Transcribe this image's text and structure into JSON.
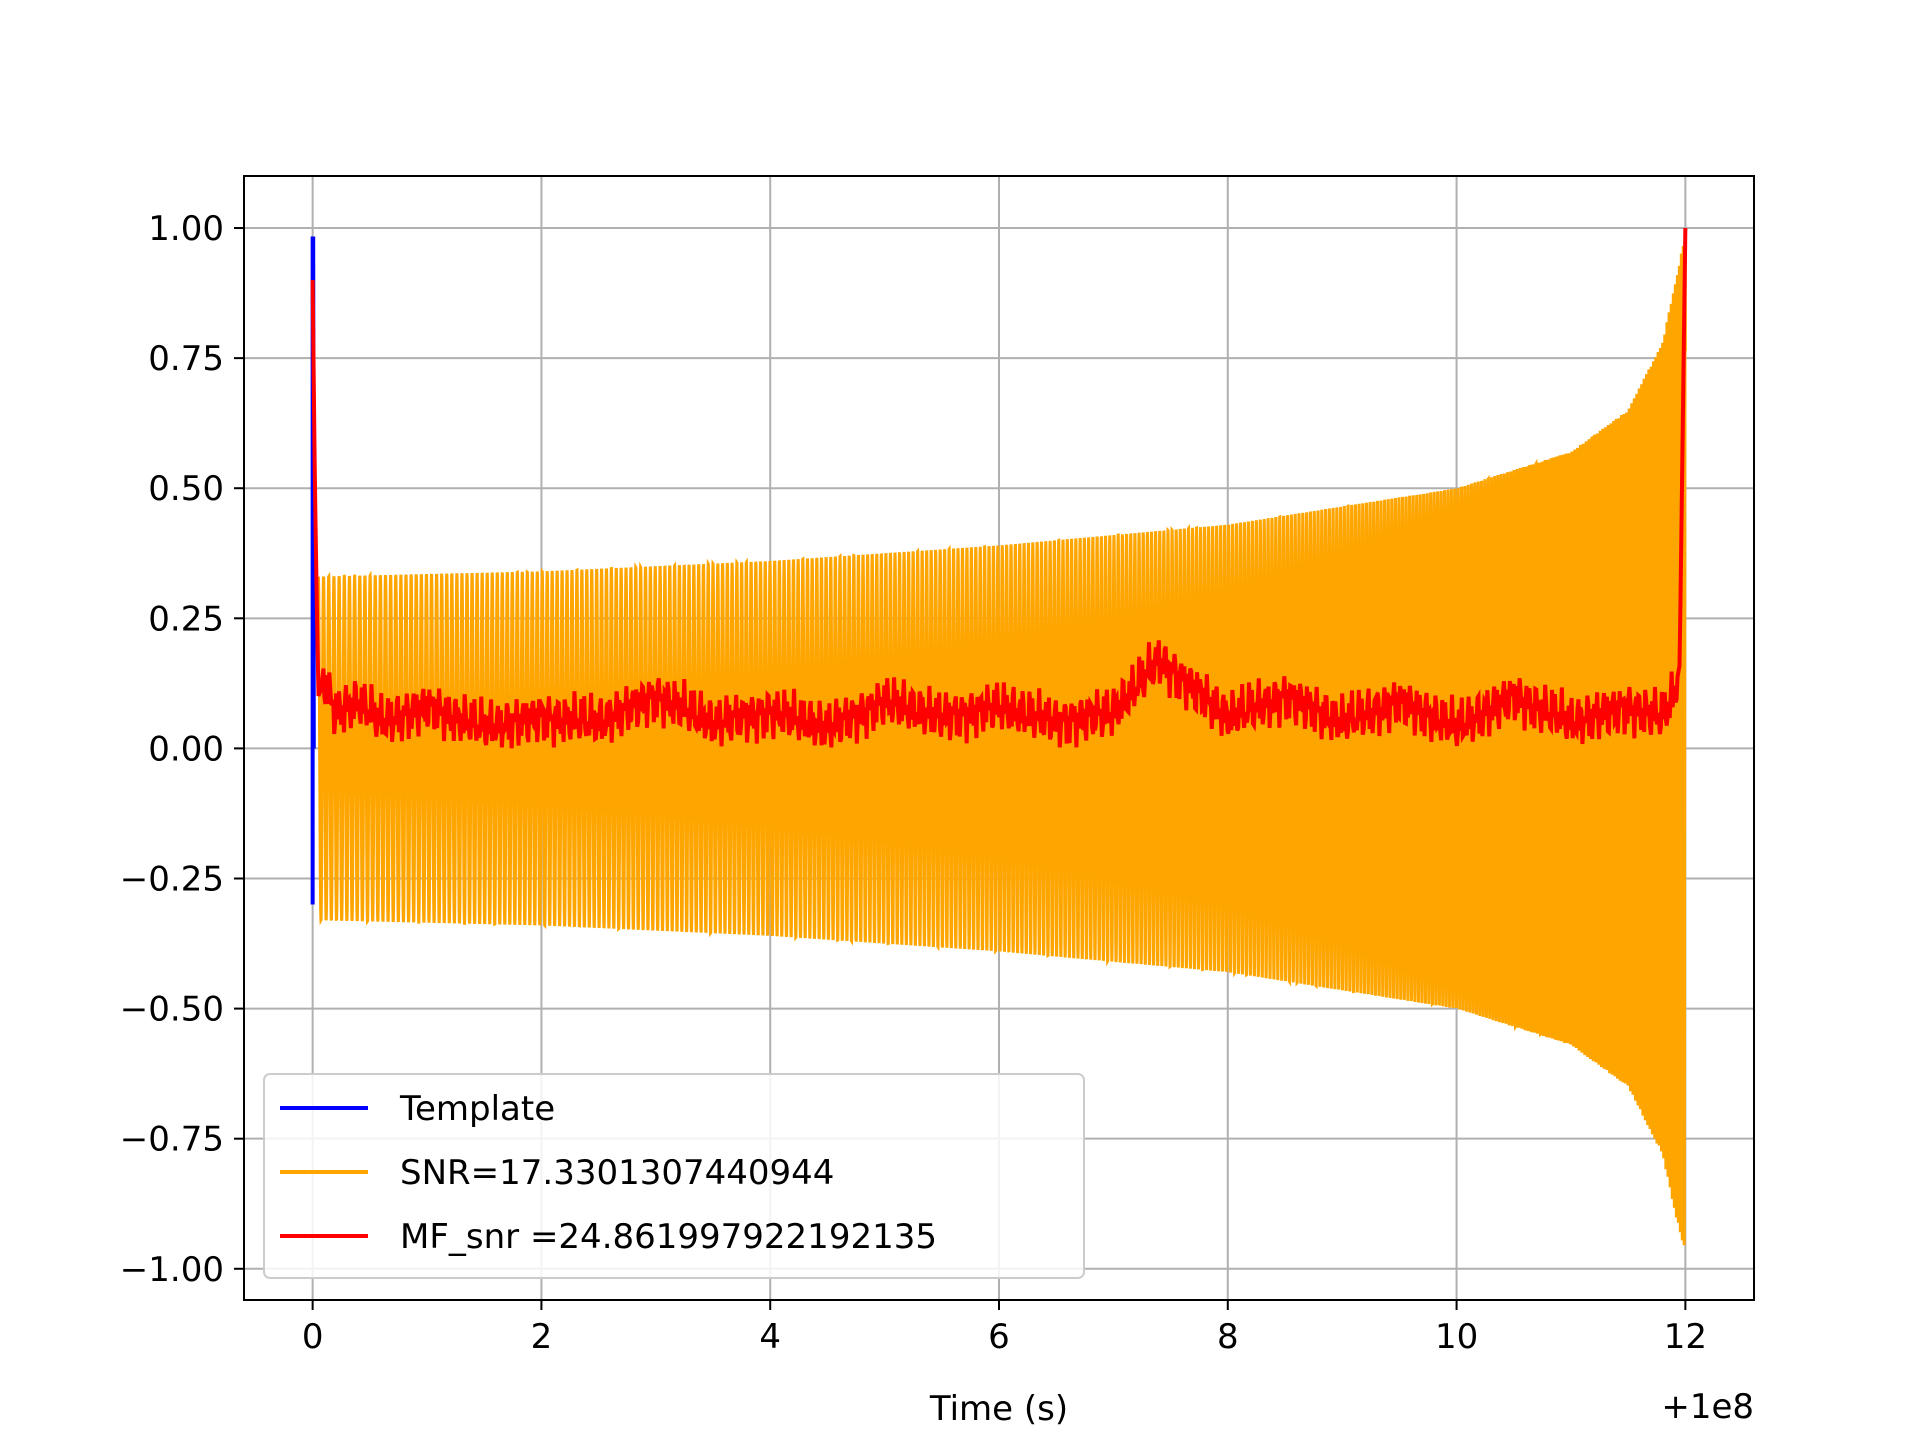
{
  "chart_data": {
    "type": "line",
    "title": "",
    "xlabel": "Time (s)",
    "ylabel": "",
    "x_offset_label": "+1e8",
    "xlim": [
      -0.6,
      12.6
    ],
    "ylim": [
      -1.06,
      1.1
    ],
    "xticks": [
      0,
      2,
      4,
      6,
      8,
      10,
      12
    ],
    "xtick_labels": [
      "0",
      "2",
      "4",
      "6",
      "8",
      "10",
      "12"
    ],
    "yticks": [
      1.0,
      0.75,
      0.5,
      0.25,
      0.0,
      -0.25,
      -0.5,
      -0.75,
      -1.0
    ],
    "ytick_labels": [
      "1.00",
      "0.75",
      "0.50",
      "0.25",
      "0.00",
      "−0.25",
      "−0.50",
      "−0.75",
      "−1.00"
    ],
    "grid": true,
    "legend_position": "lower-left",
    "series": [
      {
        "name": "Template",
        "color": "#0000ff",
        "description_values": {
          "x": [
            0.0,
            0.0,
            0.005,
            0.01
          ],
          "y": [
            -0.3,
            0.98,
            0.98,
            0.0
          ]
        }
      },
      {
        "name": "SNR=17.3301307440944",
        "color": "#ffa500",
        "envelope": {
          "x": [
            0.05,
            2,
            4,
            6,
            8,
            10,
            11,
            11.5,
            11.8,
            11.95,
            12.0
          ],
          "upper": [
            0.33,
            0.34,
            0.36,
            0.39,
            0.43,
            0.5,
            0.57,
            0.65,
            0.78,
            0.93,
            1.0
          ],
          "lower": [
            -0.33,
            -0.34,
            -0.36,
            -0.39,
            -0.43,
            -0.5,
            -0.57,
            -0.65,
            -0.78,
            -0.93,
            -0.97
          ]
        }
      },
      {
        "name": "MF_snr =24.861997922192135",
        "color": "#ff0000",
        "x": [
          0.0,
          0.02,
          0.05,
          0.1,
          0.2,
          0.4,
          0.6,
          1.0,
          1.5,
          2.0,
          2.5,
          3.0,
          3.5,
          4.0,
          4.5,
          5.0,
          5.5,
          6.0,
          6.5,
          7.0,
          7.4,
          8.0,
          8.5,
          9.0,
          9.5,
          10.0,
          10.5,
          11.0,
          11.5,
          11.8,
          11.9,
          11.95,
          12.0
        ],
        "y": [
          0.9,
          0.5,
          0.1,
          0.13,
          0.07,
          0.09,
          0.05,
          0.08,
          0.04,
          0.06,
          0.05,
          0.1,
          0.05,
          0.07,
          0.04,
          0.09,
          0.06,
          0.08,
          0.05,
          0.07,
          0.17,
          0.06,
          0.1,
          0.05,
          0.09,
          0.04,
          0.1,
          0.05,
          0.08,
          0.06,
          0.1,
          0.16,
          1.0
        ]
      }
    ]
  }
}
